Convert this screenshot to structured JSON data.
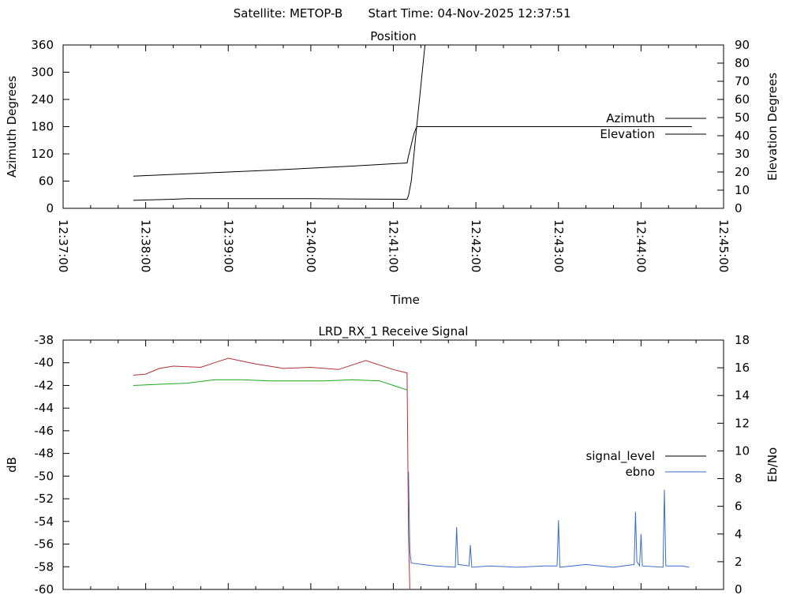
{
  "header": {
    "satellite_text": "Satellite: METOP-B",
    "start_time_text": "Start Time: 04-Nov-2025 12:37:51"
  },
  "colors": {
    "azimuth": "#b03030",
    "elevation": "#3a6cc9",
    "signal_level": "#b03030",
    "ebno": "#3a6cc9",
    "signal_green": "#1aaa1a",
    "legend_signal_level": "#000000"
  },
  "chart_data": [
    {
      "type": "line",
      "title": "Position",
      "xlabel": "Time",
      "ylabel_left": "Azimuth Degrees",
      "ylabel_right": "Elevation Degrees",
      "x_range": [
        "12:37:00",
        "12:45:00"
      ],
      "x_ticks": [
        "12:37:00",
        "12:38:00",
        "12:39:00",
        "12:40:00",
        "12:41:00",
        "12:42:00",
        "12:43:00",
        "12:44:00",
        "12:45:00"
      ],
      "ylim_left": [
        0,
        360
      ],
      "yticks_left": [
        0,
        60,
        120,
        180,
        240,
        300,
        360
      ],
      "ylim_right": [
        0,
        90
      ],
      "yticks_right": [
        0,
        10,
        20,
        30,
        40,
        50,
        60,
        70,
        80,
        90
      ],
      "legend_position": "right",
      "series": [
        {
          "name": "Azimuth",
          "axis": "left",
          "points": [
            [
              "12:37:51",
              71
            ],
            [
              "12:38:30",
              76
            ],
            [
              "12:39:30",
              84
            ],
            [
              "12:40:30",
              93
            ],
            [
              "12:41:10",
              100
            ],
            [
              "12:41:11",
              115
            ],
            [
              "12:41:13",
              140
            ],
            [
              "12:41:15",
              165
            ],
            [
              "12:41:17",
              180
            ],
            [
              "12:44:37",
              180
            ]
          ]
        },
        {
          "name": "Elevation",
          "axis": "right",
          "points": [
            [
              "12:37:51",
              4.4
            ],
            [
              "12:38:20",
              5
            ],
            [
              "12:38:30",
              5.3
            ],
            [
              "12:40:00",
              5.3
            ],
            [
              "12:40:35",
              5.1
            ],
            [
              "12:41:10",
              5.0
            ],
            [
              "12:41:11",
              7
            ],
            [
              "12:41:13",
              15
            ],
            [
              "12:41:15",
              30
            ],
            [
              "12:41:17",
              45
            ],
            [
              "12:41:19",
              60
            ],
            [
              "12:41:21",
              75
            ],
            [
              "12:41:23",
              90
            ]
          ]
        }
      ]
    },
    {
      "type": "line",
      "title": "LRD_RX_1 Receive Signal",
      "xlabel": "",
      "ylabel_left": "dB",
      "ylabel_right": "Eb/No",
      "x_range": [
        "12:37:00",
        "12:45:00"
      ],
      "ylim_left": [
        -60,
        -38
      ],
      "yticks_left": [
        -60,
        -58,
        -56,
        -54,
        -52,
        -50,
        -48,
        -46,
        -44,
        -42,
        -40,
        -38
      ],
      "ylim_right": [
        0,
        18
      ],
      "yticks_right": [
        0,
        2,
        4,
        6,
        8,
        10,
        12,
        14,
        16,
        18
      ],
      "legend_position": "right",
      "series": [
        {
          "name": "signal_level",
          "axis": "left",
          "points": [
            [
              "12:37:51",
              -41.1
            ],
            [
              "12:38:00",
              -41.0
            ],
            [
              "12:38:10",
              -40.5
            ],
            [
              "12:38:20",
              -40.3
            ],
            [
              "12:38:40",
              -40.4
            ],
            [
              "12:38:50",
              -40.0
            ],
            [
              "12:39:00",
              -39.6
            ],
            [
              "12:39:20",
              -40.1
            ],
            [
              "12:39:40",
              -40.5
            ],
            [
              "12:40:00",
              -40.4
            ],
            [
              "12:40:20",
              -40.6
            ],
            [
              "12:40:40",
              -39.8
            ],
            [
              "12:41:00",
              -40.6
            ],
            [
              "12:41:10",
              -40.9
            ],
            [
              "12:41:11",
              -55.0
            ],
            [
              "12:41:12",
              -60.0
            ]
          ]
        },
        {
          "name": "ebno",
          "axis": "right",
          "points": [
            [
              "12:41:11",
              8.5
            ],
            [
              "12:41:12",
              2.8
            ],
            [
              "12:41:13",
              1.9
            ],
            [
              "12:41:30",
              1.7
            ],
            [
              "12:41:45",
              1.6
            ],
            [
              "12:41:46",
              4.5
            ],
            [
              "12:41:47",
              1.8
            ],
            [
              "12:41:55",
              1.7
            ],
            [
              "12:41:56",
              3.2
            ],
            [
              "12:41:57",
              1.6
            ],
            [
              "12:42:10",
              1.7
            ],
            [
              "12:42:30",
              1.6
            ],
            [
              "12:42:50",
              1.7
            ],
            [
              "12:42:59",
              1.7
            ],
            [
              "12:43:00",
              5.0
            ],
            [
              "12:43:01",
              1.6
            ],
            [
              "12:43:20",
              1.8
            ],
            [
              "12:43:40",
              1.6
            ],
            [
              "12:43:55",
              1.8
            ],
            [
              "12:43:56",
              5.6
            ],
            [
              "12:43:57",
              2.0
            ],
            [
              "12:43:59",
              1.7
            ],
            [
              "12:44:00",
              4.0
            ],
            [
              "12:44:01",
              1.7
            ],
            [
              "12:44:16",
              1.6
            ],
            [
              "12:44:17",
              7.2
            ],
            [
              "12:44:18",
              1.7
            ],
            [
              "12:44:30",
              1.7
            ],
            [
              "12:44:35",
              1.6
            ]
          ]
        },
        {
          "name": "",
          "axis": "left",
          "color": "#1aaa1a",
          "points": [
            [
              "12:37:51",
              -42.0
            ],
            [
              "12:38:10",
              -41.9
            ],
            [
              "12:38:30",
              -41.8
            ],
            [
              "12:38:50",
              -41.5
            ],
            [
              "12:39:10",
              -41.5
            ],
            [
              "12:39:30",
              -41.6
            ],
            [
              "12:39:50",
              -41.6
            ],
            [
              "12:40:10",
              -41.6
            ],
            [
              "12:40:30",
              -41.5
            ],
            [
              "12:40:50",
              -41.6
            ],
            [
              "12:41:00",
              -42.0
            ],
            [
              "12:41:10",
              -42.4
            ]
          ]
        }
      ]
    }
  ]
}
